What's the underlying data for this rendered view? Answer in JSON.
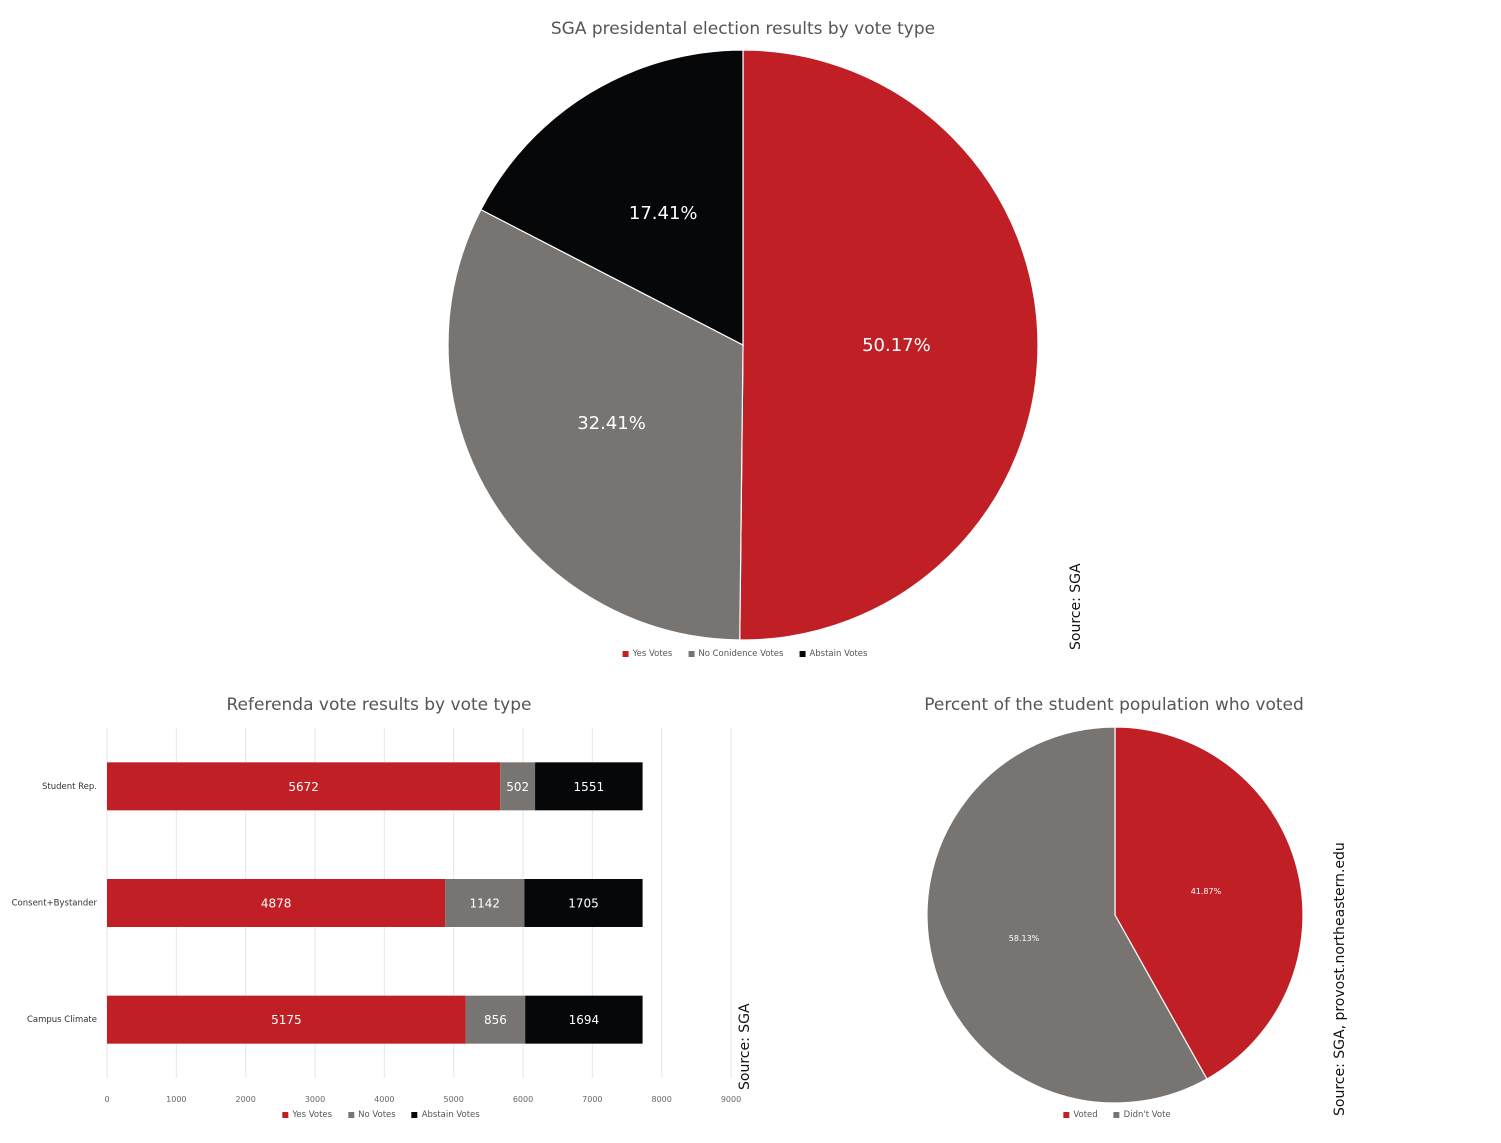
{
  "colors": {
    "yes": "#c01f26",
    "no": "#787472",
    "abstain": "#060709",
    "grid": "#e6e6e6"
  },
  "chart_data": [
    {
      "id": "presidential",
      "type": "pie",
      "title": "SGA presidental election results by vote type",
      "source": "Source: SGA",
      "slices": [
        {
          "name": "Yes Votes",
          "value": 50.17,
          "label": "50.17%",
          "color": "#c01f26"
        },
        {
          "name": "No Conidence Votes",
          "value": 32.41,
          "label": "32.41%",
          "color": "#787472"
        },
        {
          "name": "Abstain Votes",
          "value": 17.41,
          "label": "17.41%",
          "color": "#060709"
        }
      ],
      "legend": "bottom"
    },
    {
      "id": "referenda",
      "type": "bar",
      "orientation": "horizontal",
      "stacked": true,
      "title": "Referenda vote results by vote type",
      "source": "Source: SGA",
      "categories": [
        "Student Rep.",
        "Consent+Bystander",
        "Campus Climate"
      ],
      "series": [
        {
          "name": "Yes Votes",
          "values": [
            5672,
            4878,
            5175
          ],
          "color": "#c01f26"
        },
        {
          "name": "No Votes",
          "values": [
            502,
            1142,
            856
          ],
          "color": "#787472"
        },
        {
          "name": "Abstain Votes",
          "values": [
            1551,
            1705,
            1694
          ],
          "color": "#060709"
        }
      ],
      "xlim": [
        0,
        9000
      ],
      "xticks": [
        "0",
        "1000",
        "2000",
        "3000",
        "4000",
        "5000",
        "6000",
        "7000",
        "8000",
        "9000"
      ],
      "grid": true,
      "legend": "bottom"
    },
    {
      "id": "turnout",
      "type": "pie",
      "title": "Percent of the student population who voted",
      "source": "Source: SGA, provost.northeastern.edu",
      "slices": [
        {
          "name": "Voted",
          "value": 41.87,
          "label": "41.87%",
          "color": "#c01f26"
        },
        {
          "name": "Didn't Vote",
          "value": 58.13,
          "label": "58.13%",
          "color": "#787472"
        }
      ],
      "legend": "bottom"
    }
  ]
}
